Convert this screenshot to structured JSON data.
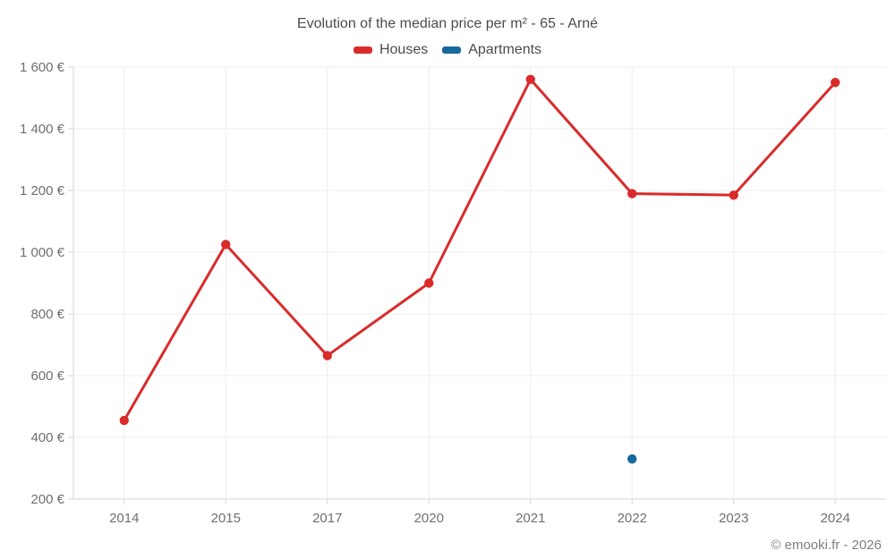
{
  "header": {
    "title": "Evolution of the median price per m² - 65 - Arné"
  },
  "legend": {
    "items": [
      {
        "label": "Houses",
        "color": "#d92b2b"
      },
      {
        "label": "Apartments",
        "color": "#17689c"
      }
    ]
  },
  "chart_data": {
    "type": "line",
    "title": "Evolution of the median price per m² - 65 - Arné",
    "categories": [
      "2014",
      "2015",
      "2017",
      "2020",
      "2021",
      "2022",
      "2023",
      "2024"
    ],
    "series": [
      {
        "name": "Houses",
        "color": "#d92b2b",
        "values": [
          455,
          1025,
          665,
          900,
          1560,
          1190,
          1185,
          1550
        ]
      },
      {
        "name": "Apartments",
        "color": "#17689c",
        "values": [
          null,
          null,
          null,
          null,
          null,
          330,
          null,
          null
        ]
      }
    ],
    "xlabel": "",
    "ylabel": "",
    "ylim": [
      200,
      1600
    ],
    "ytick_step": 200,
    "ytick_labels": [
      "200 €",
      "400 €",
      "600 €",
      "800 €",
      "1 000 €",
      "1 200 €",
      "1 400 €",
      "1 600 €"
    ],
    "grid": true,
    "legend_position": "top"
  },
  "style": {
    "grid_color": "#ededed",
    "axis_color": "#d6d6d6",
    "tick_text_color": "#6f6f6f",
    "title_color": "#4c4c4c"
  },
  "footer": {
    "credit": "© emooki.fr - 2026"
  }
}
